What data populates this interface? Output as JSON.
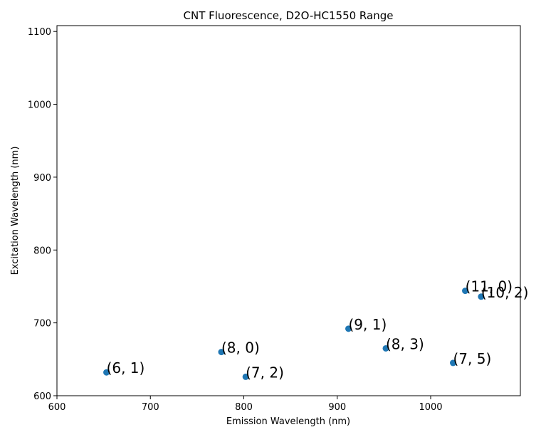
{
  "chart_data": {
    "type": "scatter",
    "title": "CNT Fluorescence, D2O-HC1550 Range",
    "xlabel": "Emission Wavelength (nm)",
    "ylabel": "Excitation Wavelength (nm)",
    "xlim": [
      600,
      1096
    ],
    "ylim": [
      600,
      1108
    ],
    "xticks": [
      "600",
      "700",
      "800",
      "900",
      "1000"
    ],
    "yticks": [
      "600",
      "700",
      "800",
      "900",
      "1000",
      "1100"
    ],
    "grid": false,
    "marker_color": "#1f77b4",
    "points": [
      {
        "label": "(6, 1)",
        "x": 653,
        "y": 632
      },
      {
        "label": "(8, 0)",
        "x": 776,
        "y": 660
      },
      {
        "label": "(7, 2)",
        "x": 802,
        "y": 626
      },
      {
        "label": "(9, 1)",
        "x": 912,
        "y": 692
      },
      {
        "label": "(8, 3)",
        "x": 952,
        "y": 665
      },
      {
        "label": "(7, 5)",
        "x": 1024,
        "y": 645
      },
      {
        "label": "(11, 0)",
        "x": 1037,
        "y": 744
      },
      {
        "label": "(10, 2)",
        "x": 1054,
        "y": 736
      }
    ]
  }
}
